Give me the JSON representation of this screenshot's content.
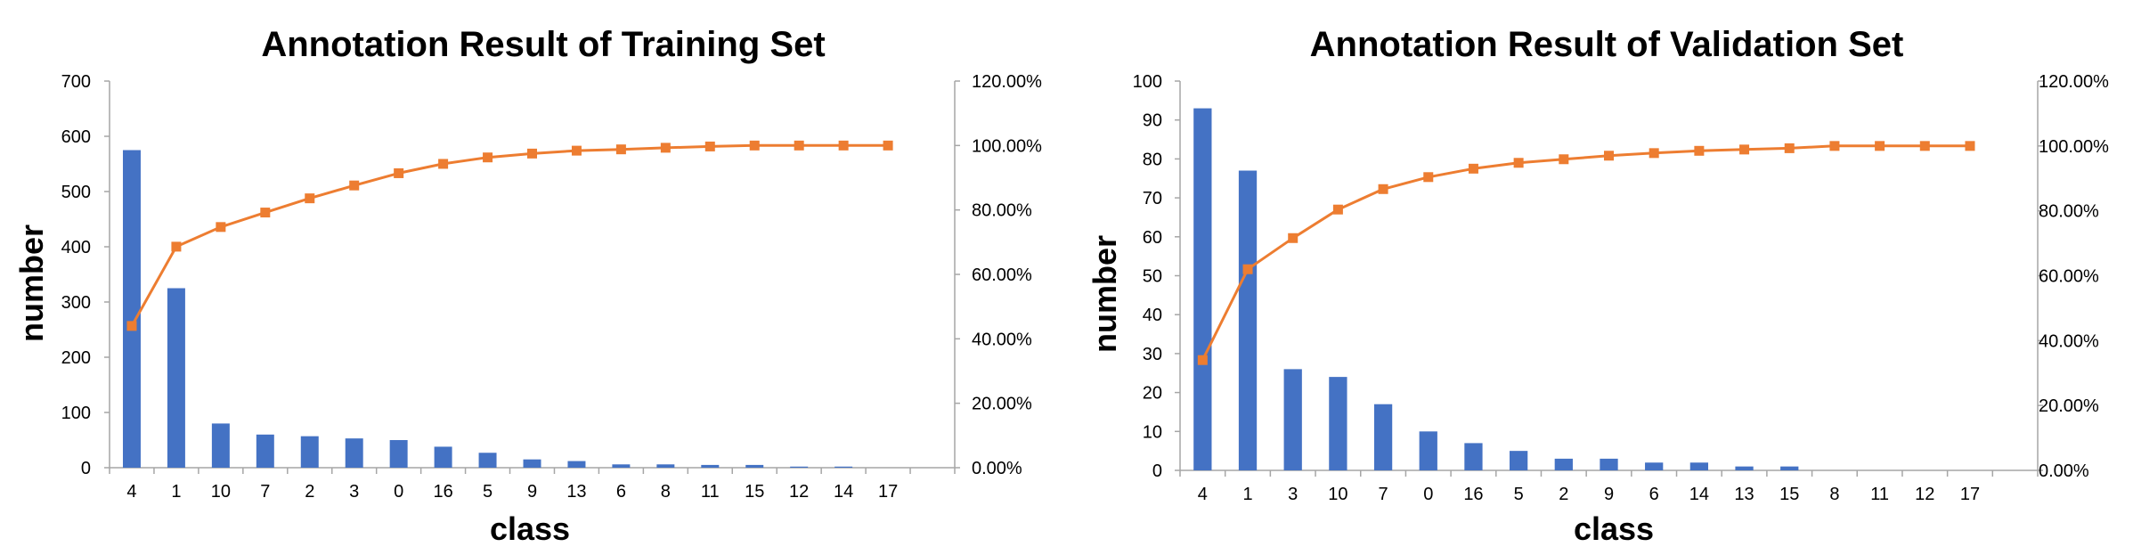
{
  "colors": {
    "bar": "#4472C4",
    "line": "#ED7D31",
    "axis": "#A6A6A6"
  },
  "chart_data": [
    {
      "type": "bar",
      "title": "Annotation Result of Training Set",
      "xlabel": "class",
      "ylabel": "number",
      "categories": [
        "4",
        "1",
        "10",
        "7",
        "2",
        "3",
        "0",
        "16",
        "5",
        "9",
        "13",
        "6",
        "8",
        "11",
        "15",
        "12",
        "14",
        "17"
      ],
      "ylim": [
        0,
        700
      ],
      "yticks": [
        "0",
        "100",
        "200",
        "300",
        "400",
        "500",
        "600",
        "700"
      ],
      "y2lim": [
        0,
        1.2
      ],
      "y2ticks": [
        "0.00%",
        "20.00%",
        "40.00%",
        "60.00%",
        "80.00%",
        "100.00%",
        "120.00%"
      ],
      "grid": false,
      "legend": "none",
      "series": [
        {
          "type": "bar",
          "values": [
            575,
            325,
            80,
            60,
            57,
            53,
            50,
            38,
            27,
            15,
            12,
            6,
            6,
            5,
            5,
            2,
            2,
            0
          ]
        },
        {
          "type": "line",
          "axis": "secondary",
          "values": [
            0.44,
            0.686,
            0.747,
            0.792,
            0.836,
            0.876,
            0.914,
            0.943,
            0.963,
            0.975,
            0.984,
            0.988,
            0.993,
            0.997,
            1.0,
            1.0,
            1.0,
            1.0
          ]
        }
      ]
    },
    {
      "type": "bar",
      "title": "Annotation Result of Validation Set",
      "xlabel": "class",
      "ylabel": "number",
      "categories": [
        "4",
        "1",
        "3",
        "10",
        "7",
        "0",
        "16",
        "5",
        "2",
        "9",
        "6",
        "14",
        "13",
        "15",
        "8",
        "11",
        "12",
        "17"
      ],
      "ylim": [
        0,
        100
      ],
      "yticks": [
        "0",
        "10",
        "20",
        "30",
        "40",
        "50",
        "60",
        "70",
        "80",
        "90",
        "100"
      ],
      "y2lim": [
        0,
        1.2
      ],
      "y2ticks": [
        "0.00%",
        "20.00%",
        "40.00%",
        "60.00%",
        "80.00%",
        "100.00%",
        "120.00%"
      ],
      "grid": false,
      "legend": "none",
      "series": [
        {
          "type": "bar",
          "values": [
            93,
            77,
            26,
            24,
            17,
            10,
            7,
            5,
            3,
            3,
            2,
            2,
            1,
            1,
            0,
            0,
            0,
            0
          ]
        },
        {
          "type": "line",
          "axis": "secondary",
          "values": [
            0.34,
            0.62,
            0.716,
            0.804,
            0.867,
            0.904,
            0.93,
            0.948,
            0.959,
            0.97,
            0.978,
            0.985,
            0.989,
            0.993,
            1.0,
            1.0,
            1.0,
            1.0
          ]
        }
      ]
    }
  ]
}
